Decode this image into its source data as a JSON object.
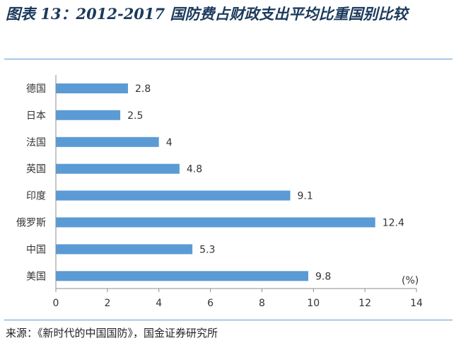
{
  "title": "图表 13：2012-2017 国防费占财政支出平均比重国别比较",
  "source": "来源：《新时代的中国国防》，国金证券研究所",
  "chart_data": {
    "type": "bar",
    "orientation": "horizontal",
    "categories": [
      "德国",
      "日本",
      "法国",
      "英国",
      "印度",
      "俄罗斯",
      "中国",
      "美国"
    ],
    "values": [
      2.8,
      2.5,
      4,
      4.8,
      9.1,
      12.4,
      5.3,
      9.8
    ],
    "value_labels": [
      "2.8",
      "2.5",
      "4",
      "4.8",
      "9.1",
      "12.4",
      "5.3",
      "9.8"
    ],
    "xlim": [
      0,
      14
    ],
    "xticks": [
      "0",
      "2",
      "4",
      "6",
      "8",
      "10",
      "12",
      "14"
    ],
    "unit_label": "(%)",
    "bar_color": "#5b9bd5",
    "grid": false
  }
}
